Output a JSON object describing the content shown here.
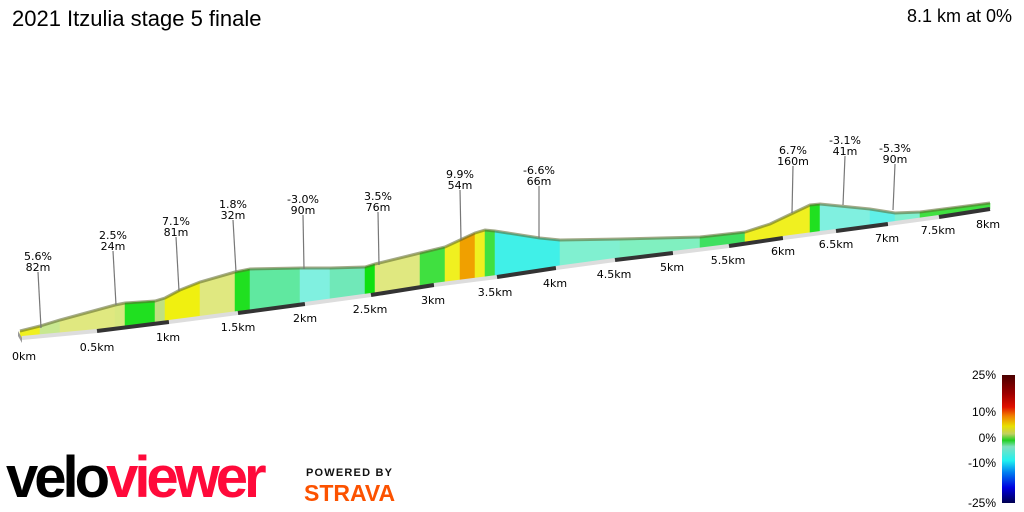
{
  "header": {
    "title": "2021 Itzulia stage 5 finale",
    "summary": "8.1 km at 0%"
  },
  "profile": {
    "km_labels": [
      "0km",
      "0.5km",
      "1km",
      "1.5km",
      "2km",
      "2.5km",
      "3km",
      "3.5km",
      "4km",
      "4.5km",
      "5km",
      "5.5km",
      "6km",
      "6.5km",
      "7km",
      "7.5km",
      "8km"
    ],
    "annotations": [
      {
        "grade": "5.6%",
        "length": "82m"
      },
      {
        "grade": "2.5%",
        "length": "24m"
      },
      {
        "grade": "7.1%",
        "length": "81m"
      },
      {
        "grade": "1.8%",
        "length": "32m"
      },
      {
        "grade": "-3.0%",
        "length": "90m"
      },
      {
        "grade": "3.5%",
        "length": "76m"
      },
      {
        "grade": "9.9%",
        "length": "54m"
      },
      {
        "grade": "-6.6%",
        "length": "66m"
      },
      {
        "grade": "6.7%",
        "length": "160m"
      },
      {
        "grade": "-3.1%",
        "length": "41m"
      },
      {
        "grade": "-5.3%",
        "length": "90m"
      }
    ]
  },
  "legend": {
    "labels": [
      "25%",
      "10%",
      "0%",
      "-10%",
      "-25%"
    ]
  },
  "branding": {
    "logo_part1": "velo",
    "logo_part2": "viewer",
    "powered_by": "POWERED BY",
    "strava": "STRAVA"
  },
  "colors": {
    "brand_red": "#ff0a3a",
    "strava_orange": "#fc5200"
  }
}
